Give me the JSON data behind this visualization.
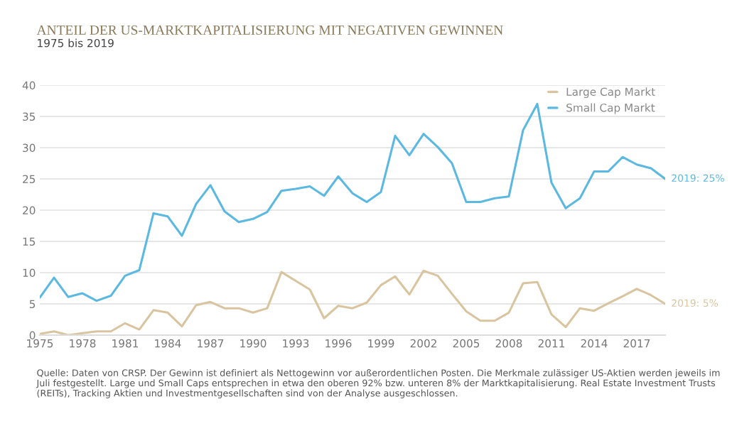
{
  "chart_data": {
    "type": "line",
    "title": "ANTEIL DER US-MARKTKAPITALISIERUNG MIT NEGATIVEN GEWINNEN",
    "subtitle": "1975 bis 2019",
    "x": [
      1975,
      1976,
      1977,
      1978,
      1979,
      1980,
      1981,
      1982,
      1983,
      1984,
      1985,
      1986,
      1987,
      1988,
      1989,
      1990,
      1991,
      1992,
      1993,
      1994,
      1995,
      1996,
      1997,
      1998,
      1999,
      2000,
      2001,
      2002,
      2003,
      2004,
      2005,
      2006,
      2007,
      2008,
      2009,
      2010,
      2011,
      2012,
      2013,
      2014,
      2015,
      2016,
      2017,
      2018,
      2019
    ],
    "series": [
      {
        "name": "Large Cap Markt",
        "color": "#d9c4a0",
        "values": [
          0.2,
          0.6,
          0.0,
          0.3,
          0.6,
          0.6,
          1.9,
          0.9,
          4.0,
          3.6,
          1.4,
          4.8,
          5.3,
          4.3,
          4.3,
          3.6,
          4.3,
          10.1,
          8.7,
          7.3,
          2.7,
          4.7,
          4.3,
          5.2,
          8.0,
          9.4,
          6.5,
          10.3,
          9.5,
          6.6,
          3.8,
          2.3,
          2.3,
          3.6,
          8.3,
          8.5,
          3.3,
          1.3,
          4.3,
          3.9,
          5.1,
          6.2,
          7.4,
          6.4,
          5.0
        ]
      },
      {
        "name": "Small Cap Markt",
        "color": "#5bb8e0",
        "values": [
          6.0,
          9.2,
          6.1,
          6.7,
          5.5,
          6.3,
          9.5,
          10.4,
          19.5,
          19.0,
          15.9,
          21.0,
          24.0,
          19.8,
          18.1,
          18.6,
          19.7,
          23.1,
          23.4,
          23.8,
          22.3,
          25.4,
          22.7,
          21.3,
          22.9,
          31.9,
          28.8,
          32.2,
          30.1,
          27.5,
          21.3,
          21.3,
          21.9,
          22.2,
          32.8,
          37.0,
          24.4,
          20.3,
          21.9,
          26.2,
          26.2,
          28.5,
          27.3,
          26.7,
          25.0
        ]
      }
    ],
    "xlim": [
      1975,
      2019
    ],
    "xticks": [
      1975,
      1978,
      1981,
      1984,
      1987,
      1990,
      1993,
      1996,
      1999,
      2002,
      2005,
      2008,
      2011,
      2014,
      2017
    ],
    "ylim": [
      0,
      40
    ],
    "yticks": [
      0,
      5,
      10,
      15,
      20,
      25,
      30,
      35,
      40
    ],
    "grid": "y",
    "legend": "top right",
    "marker": "none",
    "line_style": "solid",
    "annotations": [
      {
        "text": "2019: 25%",
        "x": 2019,
        "y": 25
      },
      {
        "text": "2019: 5%",
        "x": 2019,
        "y": 5
      },
      "Quelle: Daten von CRSP. Der Gewinn ist definiert als Nettogewinn vor außerordentlichen Posten. Die Merkmale zulässiger US-Aktien werden jeweils im Juli festgestellt. Large und Small Caps entsprechen in etwa den oberen 92% bzw. unteren 8% der Marktkapitalisierung. Real Estate Investment Trusts (REITs), Tracking Aktien und Investmentgesellschaften sind von der Analyse ausgeschlossen."
    ]
  }
}
